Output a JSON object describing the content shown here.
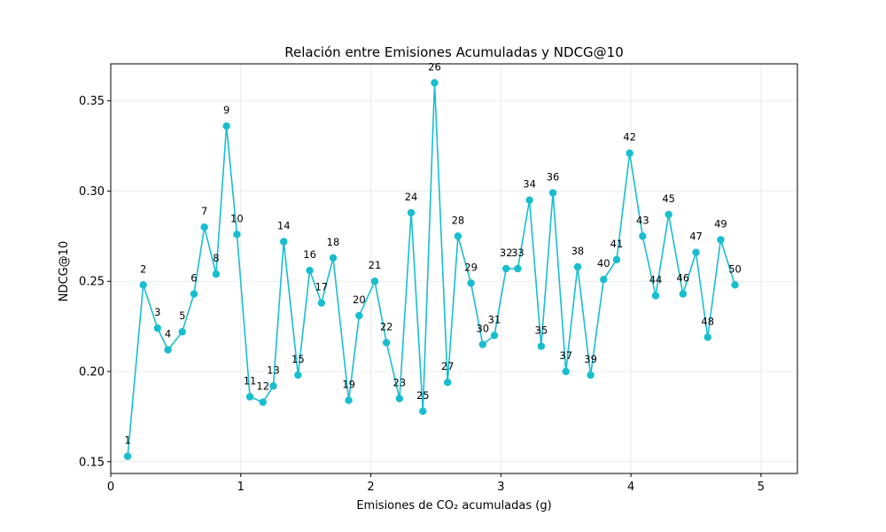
{
  "chart_data": {
    "type": "line",
    "title": "Relación entre Emisiones Acumuladas y NDCG@10",
    "xlabel": "Emisiones de CO₂ acumuladas (g)",
    "ylabel": "NDCG@10",
    "xlim": [
      0,
      5.28
    ],
    "ylim": [
      0.1435,
      0.3705
    ],
    "xticks": [
      0,
      1,
      2,
      3,
      4,
      5
    ],
    "yticks": [
      0.15,
      0.2,
      0.25,
      0.3,
      0.35
    ],
    "xtick_labels": [
      "0",
      "1",
      "2",
      "3",
      "4",
      "5"
    ],
    "ytick_labels": [
      "0.15",
      "0.20",
      "0.25",
      "0.30",
      "0.35"
    ],
    "grid": true,
    "color": "#17becf",
    "series": [
      {
        "labels": [
          "1",
          "2",
          "3",
          "4",
          "5",
          "6",
          "7",
          "8",
          "9",
          "10",
          "11",
          "12",
          "13",
          "14",
          "15",
          "16",
          "17",
          "18",
          "19",
          "20",
          "21",
          "22",
          "23",
          "24",
          "25",
          "26",
          "27",
          "28",
          "29",
          "30",
          "31",
          "32",
          "33",
          "34",
          "35",
          "36",
          "37",
          "38",
          "39",
          "40",
          "41",
          "42",
          "43",
          "44",
          "45",
          "46",
          "47",
          "48",
          "49",
          "50"
        ],
        "x": [
          0.13,
          0.25,
          0.36,
          0.44,
          0.55,
          0.64,
          0.72,
          0.81,
          0.89,
          0.97,
          1.07,
          1.17,
          1.25,
          1.33,
          1.44,
          1.53,
          1.62,
          1.71,
          1.83,
          1.91,
          2.03,
          2.12,
          2.22,
          2.31,
          2.4,
          2.49,
          2.59,
          2.67,
          2.77,
          2.86,
          2.95,
          3.04,
          3.13,
          3.22,
          3.31,
          3.4,
          3.5,
          3.59,
          3.69,
          3.79,
          3.89,
          3.99,
          4.09,
          4.19,
          4.29,
          4.4,
          4.5,
          4.59,
          4.69,
          4.8
        ],
        "y": [
          0.153,
          0.248,
          0.224,
          0.212,
          0.222,
          0.243,
          0.28,
          0.254,
          0.336,
          0.276,
          0.186,
          0.183,
          0.192,
          0.272,
          0.198,
          0.256,
          0.238,
          0.263,
          0.184,
          0.231,
          0.25,
          0.216,
          0.185,
          0.288,
          0.178,
          0.36,
          0.194,
          0.275,
          0.249,
          0.215,
          0.22,
          0.257,
          0.257,
          0.295,
          0.214,
          0.299,
          0.2,
          0.258,
          0.198,
          0.251,
          0.262,
          0.321,
          0.275,
          0.242,
          0.287,
          0.243,
          0.266,
          0.219,
          0.273,
          0.248
        ]
      }
    ]
  }
}
